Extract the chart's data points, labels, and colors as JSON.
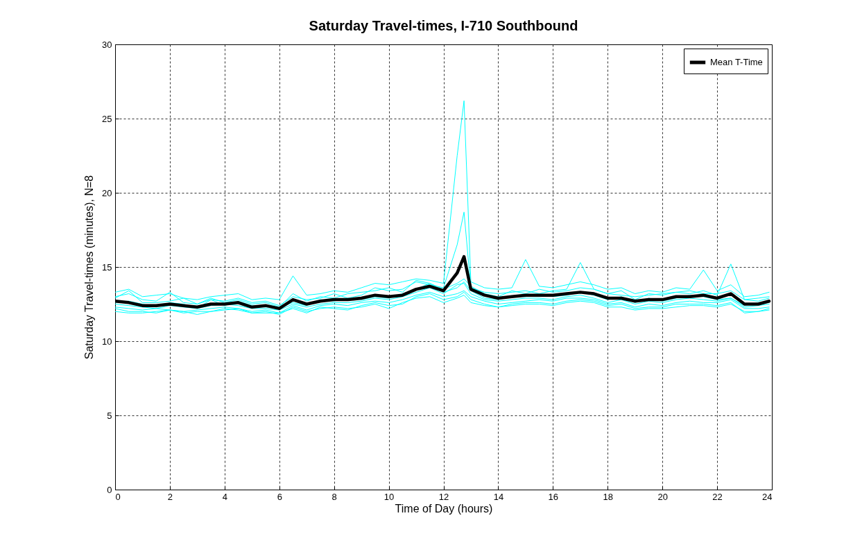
{
  "chart_data": {
    "type": "line",
    "title": "Saturday Travel-times, I-710 Southbound",
    "xlabel": "Time of Day (hours)",
    "ylabel": "Saturday Travel-times (minutes), N=8",
    "x": [
      0,
      0.5,
      1,
      1.5,
      2,
      2.5,
      3,
      3.5,
      4,
      4.5,
      5,
      5.5,
      6,
      6.5,
      7,
      7.5,
      8,
      8.5,
      9,
      9.5,
      10,
      10.5,
      11,
      11.5,
      12,
      12.5,
      12.75,
      13,
      13.5,
      14,
      14.5,
      15,
      15.5,
      16,
      16.5,
      17,
      17.5,
      18,
      18.5,
      19,
      19.5,
      20,
      20.5,
      21,
      21.5,
      22,
      22.5,
      23,
      23.5,
      23.9
    ],
    "series": [
      {
        "color": "#00ffff",
        "values": [
          13.3,
          13.5,
          13.0,
          13.1,
          13.2,
          12.9,
          12.8,
          13.0,
          13.1,
          13.2,
          12.8,
          12.9,
          12.8,
          14.4,
          13.1,
          13.2,
          13.4,
          13.3,
          13.6,
          13.9,
          13.8,
          14.0,
          14.2,
          14.1,
          13.9,
          22.5,
          26.2,
          14.0,
          13.6,
          13.5,
          13.6,
          15.5,
          13.7,
          13.6,
          13.8,
          14.0,
          13.8,
          13.5,
          13.6,
          13.2,
          13.4,
          13.3,
          13.6,
          13.5,
          14.8,
          13.4,
          13.8,
          13.0,
          13.1,
          13.3
        ]
      },
      {
        "color": "#00ffff",
        "values": [
          13.0,
          13.2,
          12.8,
          12.7,
          13.3,
          12.6,
          12.5,
          12.8,
          12.7,
          12.9,
          12.6,
          12.7,
          12.4,
          13.0,
          12.8,
          12.9,
          13.2,
          12.9,
          13.1,
          13.6,
          13.4,
          13.5,
          14.0,
          13.8,
          13.6,
          16.5,
          18.7,
          13.6,
          13.3,
          13.2,
          13.3,
          13.4,
          13.2,
          13.4,
          13.5,
          15.3,
          13.5,
          13.2,
          13.1,
          13.0,
          13.1,
          13.2,
          13.3,
          13.2,
          13.4,
          13.1,
          15.2,
          12.8,
          12.9,
          13.0
        ]
      },
      {
        "color": "#00ffff",
        "values": [
          12.6,
          12.7,
          12.5,
          12.3,
          12.6,
          12.5,
          12.2,
          12.8,
          12.4,
          12.7,
          12.4,
          12.3,
          12.3,
          12.6,
          12.4,
          12.8,
          12.7,
          12.9,
          12.8,
          13.0,
          12.9,
          13.2,
          13.5,
          13.9,
          13.3,
          13.6,
          14.0,
          13.4,
          12.9,
          12.8,
          13.0,
          13.0,
          13.2,
          13.0,
          13.1,
          13.3,
          13.1,
          12.8,
          13.0,
          12.6,
          12.9,
          12.7,
          12.9,
          13.1,
          13.0,
          12.8,
          12.9,
          12.4,
          12.6,
          12.6
        ]
      },
      {
        "color": "#00ffff",
        "values": [
          12.3,
          12.2,
          12.1,
          12.2,
          12.1,
          12.0,
          12.1,
          12.2,
          12.3,
          12.2,
          12.0,
          12.1,
          11.9,
          12.4,
          12.1,
          12.4,
          12.5,
          12.4,
          12.6,
          12.7,
          12.6,
          12.8,
          13.1,
          13.3,
          13.0,
          13.2,
          13.4,
          13.0,
          12.7,
          12.5,
          12.6,
          12.7,
          12.8,
          12.7,
          12.9,
          12.9,
          12.8,
          12.5,
          12.6,
          12.3,
          12.5,
          12.4,
          12.6,
          12.7,
          12.6,
          12.6,
          12.8,
          12.2,
          12.2,
          12.3
        ]
      },
      {
        "color": "#00ffff",
        "values": [
          12.0,
          11.9,
          11.9,
          12.0,
          12.1,
          11.9,
          12.0,
          12.0,
          12.1,
          12.2,
          11.9,
          12.0,
          11.8,
          12.3,
          12.0,
          12.2,
          12.3,
          12.2,
          12.3,
          12.5,
          12.2,
          12.6,
          12.9,
          13.0,
          12.6,
          12.9,
          13.1,
          12.6,
          12.4,
          12.3,
          12.4,
          12.5,
          12.5,
          12.4,
          12.6,
          12.7,
          12.6,
          12.3,
          12.3,
          12.1,
          12.2,
          12.2,
          12.3,
          12.4,
          12.4,
          12.3,
          12.5,
          12.0,
          12.0,
          12.1
        ]
      },
      {
        "color": "#00ffff",
        "values": [
          12.9,
          13.4,
          12.6,
          12.6,
          12.7,
          12.9,
          12.5,
          12.9,
          12.6,
          12.8,
          12.5,
          12.6,
          12.3,
          13.2,
          12.7,
          13.0,
          12.9,
          13.2,
          13.3,
          13.4,
          13.6,
          13.3,
          14.1,
          13.9,
          13.5,
          13.9,
          14.2,
          13.7,
          13.2,
          13.0,
          13.4,
          13.2,
          13.5,
          13.3,
          13.4,
          13.6,
          13.5,
          13.2,
          13.4,
          12.8,
          13.2,
          13.1,
          13.3,
          13.4,
          13.2,
          13.2,
          13.4,
          12.8,
          12.7,
          12.9
        ]
      },
      {
        "color": "#00ffff",
        "values": [
          12.5,
          12.4,
          12.3,
          12.2,
          12.4,
          12.3,
          12.2,
          12.4,
          12.5,
          12.4,
          12.2,
          12.2,
          12.1,
          12.5,
          12.3,
          12.5,
          12.6,
          12.6,
          12.7,
          12.9,
          12.8,
          13.0,
          13.3,
          13.6,
          13.2,
          13.8,
          13.9,
          13.2,
          12.8,
          12.7,
          12.8,
          12.9,
          12.9,
          12.8,
          13.0,
          13.1,
          12.9,
          12.6,
          12.8,
          12.5,
          12.7,
          12.6,
          12.8,
          12.9,
          12.8,
          12.7,
          12.9,
          12.3,
          12.4,
          12.5
        ]
      },
      {
        "color": "#00ffff",
        "values": [
          12.2,
          12.0,
          12.0,
          11.9,
          12.1,
          12.0,
          11.8,
          12.0,
          12.2,
          12.1,
          11.9,
          11.9,
          11.9,
          12.2,
          11.9,
          12.3,
          12.2,
          12.1,
          12.4,
          12.6,
          12.4,
          12.5,
          13.0,
          13.2,
          12.8,
          13.0,
          13.3,
          12.8,
          12.5,
          12.3,
          12.5,
          12.6,
          12.6,
          12.5,
          12.7,
          12.8,
          12.7,
          12.4,
          12.5,
          12.2,
          12.3,
          12.3,
          12.5,
          12.5,
          12.5,
          12.4,
          12.6,
          11.9,
          12.0,
          12.2
        ]
      },
      {
        "name": "Mean T-Time",
        "color": "#000000",
        "values": [
          12.7,
          12.6,
          12.4,
          12.4,
          12.5,
          12.4,
          12.3,
          12.5,
          12.5,
          12.6,
          12.3,
          12.4,
          12.2,
          12.8,
          12.5,
          12.7,
          12.8,
          12.8,
          12.9,
          13.1,
          13.0,
          13.1,
          13.5,
          13.7,
          13.4,
          14.6,
          15.7,
          13.5,
          13.1,
          12.9,
          13.0,
          13.1,
          13.1,
          13.1,
          13.2,
          13.3,
          13.2,
          12.9,
          12.9,
          12.7,
          12.8,
          12.8,
          13.0,
          13.0,
          13.1,
          12.9,
          13.2,
          12.5,
          12.5,
          12.7
        ]
      }
    ],
    "xlim": [
      0,
      24
    ],
    "xticks": [
      0,
      2,
      4,
      6,
      8,
      10,
      12,
      14,
      16,
      18,
      20,
      22,
      24
    ],
    "ylim": [
      0,
      30
    ],
    "yticks": [
      0,
      5,
      10,
      15,
      20,
      25,
      30
    ],
    "grid": true,
    "legend": "top right"
  }
}
